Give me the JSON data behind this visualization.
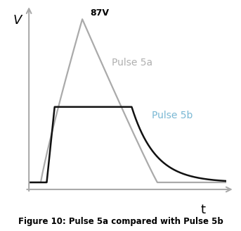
{
  "title": "Figure 10: Pulse 5a compared with Pulse 5b",
  "xlabel": "t",
  "ylabel": "V",
  "label_87v": "87V",
  "label_pulse5a": "Pulse 5a",
  "label_pulse5b": "Pulse 5b",
  "color_pulse5a": "#aaaaaa",
  "color_pulse5b": "#111111",
  "color_pulse5b_label": "#7ab8d4",
  "color_pulse5a_label": "#b0b0b0",
  "axis_color": "#aaaaaa",
  "background": "#ffffff",
  "figsize": [
    3.43,
    3.28
  ],
  "dpi": 100
}
